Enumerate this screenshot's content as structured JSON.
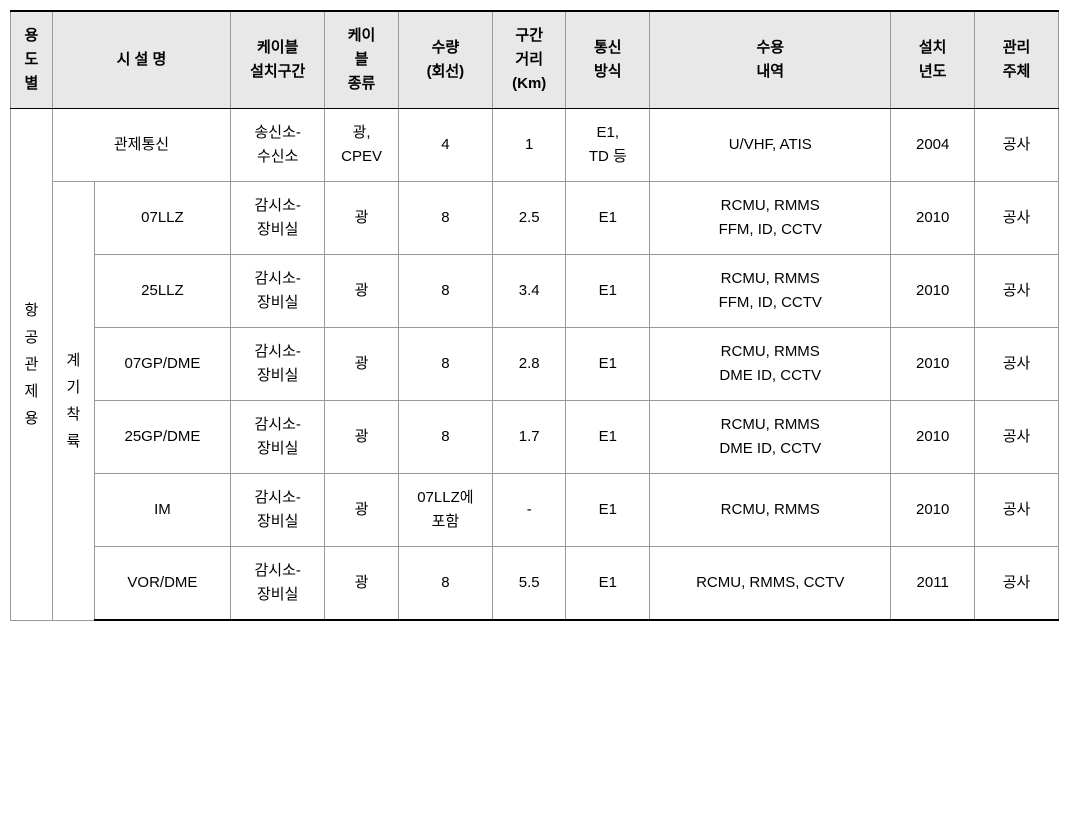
{
  "headers": {
    "usage": "용\n도\n별",
    "facility": "시 설 명",
    "cableSection": "케이블\n설치구간",
    "cableType": "케이\n블\n종류",
    "quantity": "수량\n(회선)",
    "distance": "구간\n거리\n(Km)",
    "commMethod": "통신\n방식",
    "content": "수용\n내역",
    "year": "설치\n년도",
    "manager": "관리\n주체"
  },
  "usageCategory": "항\n공\n관\n제\n용",
  "subCategory": "계\n기\n착\n륙",
  "rows": [
    {
      "facility": "관제통신",
      "cableSection": "송신소-\n수신소",
      "cableType": "광,\nCPEV",
      "quantity": "4",
      "distance": "1",
      "commMethod": "E1,\nTD 등",
      "content": "U/VHF, ATIS",
      "year": "2004",
      "manager": "공사"
    },
    {
      "facility": "07LLZ",
      "cableSection": "감시소-\n장비실",
      "cableType": "광",
      "quantity": "8",
      "distance": "2.5",
      "commMethod": "E1",
      "content": "RCMU, RMMS\nFFM, ID, CCTV",
      "year": "2010",
      "manager": "공사"
    },
    {
      "facility": "25LLZ",
      "cableSection": "감시소-\n장비실",
      "cableType": "광",
      "quantity": "8",
      "distance": "3.4",
      "commMethod": "E1",
      "content": "RCMU, RMMS\nFFM, ID, CCTV",
      "year": "2010",
      "manager": "공사"
    },
    {
      "facility": "07GP/DME",
      "cableSection": "감시소-\n장비실",
      "cableType": "광",
      "quantity": "8",
      "distance": "2.8",
      "commMethod": "E1",
      "content": "RCMU, RMMS\nDME ID, CCTV",
      "year": "2010",
      "manager": "공사"
    },
    {
      "facility": "25GP/DME",
      "cableSection": "감시소-\n장비실",
      "cableType": "광",
      "quantity": "8",
      "distance": "1.7",
      "commMethod": "E1",
      "content": "RCMU, RMMS\nDME ID, CCTV",
      "year": "2010",
      "manager": "공사"
    },
    {
      "facility": "IM",
      "cableSection": "감시소-\n장비실",
      "cableType": "광",
      "quantity": "07LLZ에\n포함",
      "distance": "-",
      "commMethod": "E1",
      "content": "RCMU, RMMS",
      "year": "2010",
      "manager": "공사"
    },
    {
      "facility": "VOR/DME",
      "cableSection": "감시소-\n장비실",
      "cableType": "광",
      "quantity": "8",
      "distance": "5.5",
      "commMethod": "E1",
      "content": "RCMU, RMMS, CCTV",
      "year": "2011",
      "manager": "공사"
    }
  ],
  "style": {
    "headerBg": "#e8e8e8",
    "borderColor": "#999999",
    "strongBorder": "#000000",
    "fontSize": 15
  }
}
